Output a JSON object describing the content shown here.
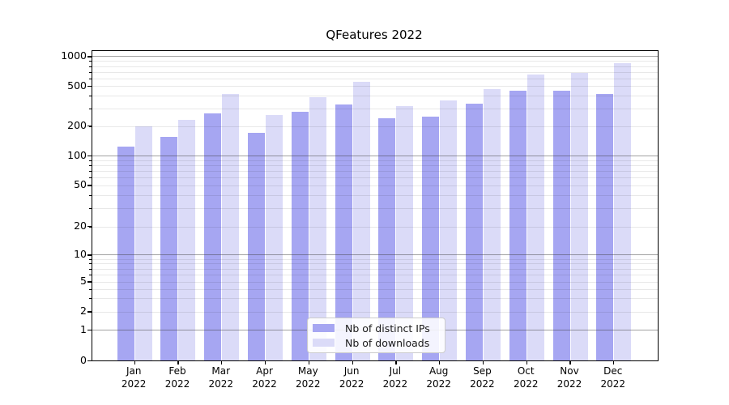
{
  "title": "QFeatures 2022",
  "legend": {
    "items": [
      {
        "label": "Nb of distinct IPs",
        "color": "#a6a6f2"
      },
      {
        "label": "Nb of downloads",
        "color": "#dbdbf8"
      }
    ]
  },
  "chart_data": {
    "type": "bar",
    "title": "QFeatures 2022",
    "categories": [
      "Jan",
      "Feb",
      "Mar",
      "Apr",
      "May",
      "Jun",
      "Jul",
      "Aug",
      "Sep",
      "Oct",
      "Nov",
      "Dec"
    ],
    "category_year": "2022",
    "series": [
      {
        "name": "Nb of distinct IPs",
        "color": "#a6a6f2",
        "values": [
          124,
          156,
          265,
          170,
          275,
          330,
          240,
          248,
          336,
          452,
          447,
          420
        ]
      },
      {
        "name": "Nb of downloads",
        "color": "#dbdbf8",
        "values": [
          200,
          230,
          420,
          255,
          390,
          555,
          318,
          358,
          468,
          655,
          683,
          858
        ]
      }
    ],
    "xlabel": "",
    "ylabel": "",
    "yscale": "log-like (symlog, linear below 1)",
    "yticks": [
      0,
      1,
      2,
      5,
      10,
      20,
      50,
      100,
      200,
      500,
      1000
    ],
    "ytick_labels": [
      "0",
      "1",
      "2",
      "5",
      "10",
      "20",
      "50",
      "100",
      "200",
      "500",
      "1000"
    ],
    "ylim": [
      0,
      1100
    ],
    "grid": "both (faint minors, darker lines at 1, 10, 100, 1000)",
    "legend_position": "lower center"
  },
  "colors": {
    "background": "#ffffff",
    "spine": "#000000",
    "grid_minor": "rgba(0,0,0,0.09)",
    "grid_major": "rgba(60,60,60,0.48)",
    "legend_border": "#cccccc"
  }
}
